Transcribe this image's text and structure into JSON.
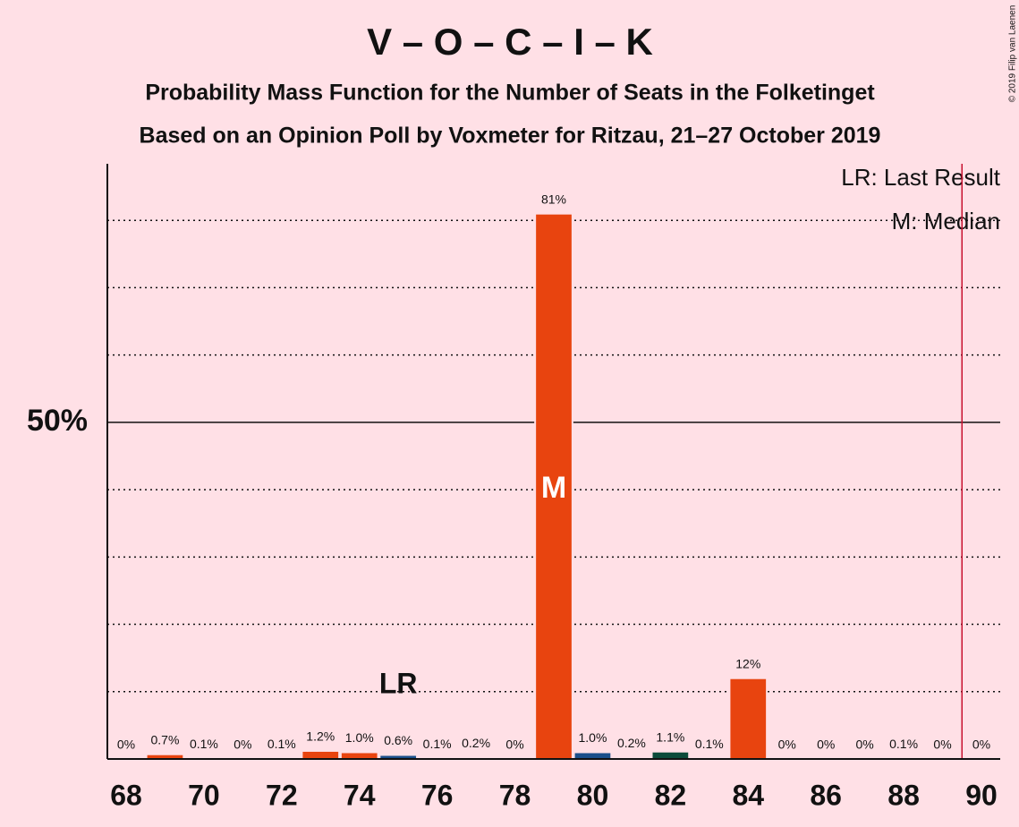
{
  "chart_data": {
    "type": "bar",
    "title": "V – O – C – I – K",
    "subtitle": "Probability Mass Function for the Number of Seats in the Folketinget",
    "subtitle2": "Based on an Opinion Poll by Voxmeter for Ritzau, 21–27 October 2019",
    "copyright": "© 2019 Filip van Laenen",
    "categories": [
      68,
      69,
      70,
      71,
      72,
      73,
      74,
      75,
      76,
      77,
      78,
      79,
      80,
      81,
      82,
      83,
      84,
      85,
      86,
      87,
      88,
      89,
      90
    ],
    "values": [
      0,
      0.7,
      0.1,
      0,
      0.1,
      1.2,
      1.0,
      0.6,
      0.1,
      0.2,
      0,
      81,
      1.0,
      0.2,
      1.1,
      0.1,
      12,
      0,
      0,
      0,
      0.1,
      0,
      0
    ],
    "value_labels": [
      "0%",
      "0.7%",
      "0.1%",
      "0%",
      "0.1%",
      "1.2%",
      "1.0%",
      "0.6%",
      "0.1%",
      "0.2%",
      "0%",
      "81%",
      "1.0%",
      "0.2%",
      "1.1%",
      "0.1%",
      "12%",
      "0%",
      "0%",
      "0%",
      "0.1%",
      "0%",
      "0%"
    ],
    "colors": [
      "#e8440f",
      "#e8440f",
      "#e8440f",
      "#e8440f",
      "#e8440f",
      "#e8440f",
      "#e8440f",
      "#1a4f8a",
      "#1a4f8a",
      "#1a4f8a",
      "#e8440f",
      "#e8440f",
      "#1a4f8a",
      "#0b4b3a",
      "#0b4b3a",
      "#0b4b3a",
      "#e8440f",
      "#e8440f",
      "#e8440f",
      "#e8440f",
      "#e8440f",
      "#e8440f",
      "#e8440f"
    ],
    "xlim": [
      68,
      90
    ],
    "xticks": [
      68,
      70,
      72,
      74,
      76,
      78,
      80,
      82,
      84,
      86,
      88,
      90
    ],
    "ylim": [
      0,
      88.4
    ],
    "yticks": [
      {
        "value": 50,
        "label": "50%"
      }
    ],
    "gridlines": [
      10,
      20,
      30,
      40,
      60,
      70,
      80
    ],
    "last_result": 75,
    "last_result_label": "LR",
    "median": 79,
    "median_label": "M",
    "majority_line": 89.5,
    "legend": [
      "LR: Last Result",
      "M: Median"
    ]
  }
}
